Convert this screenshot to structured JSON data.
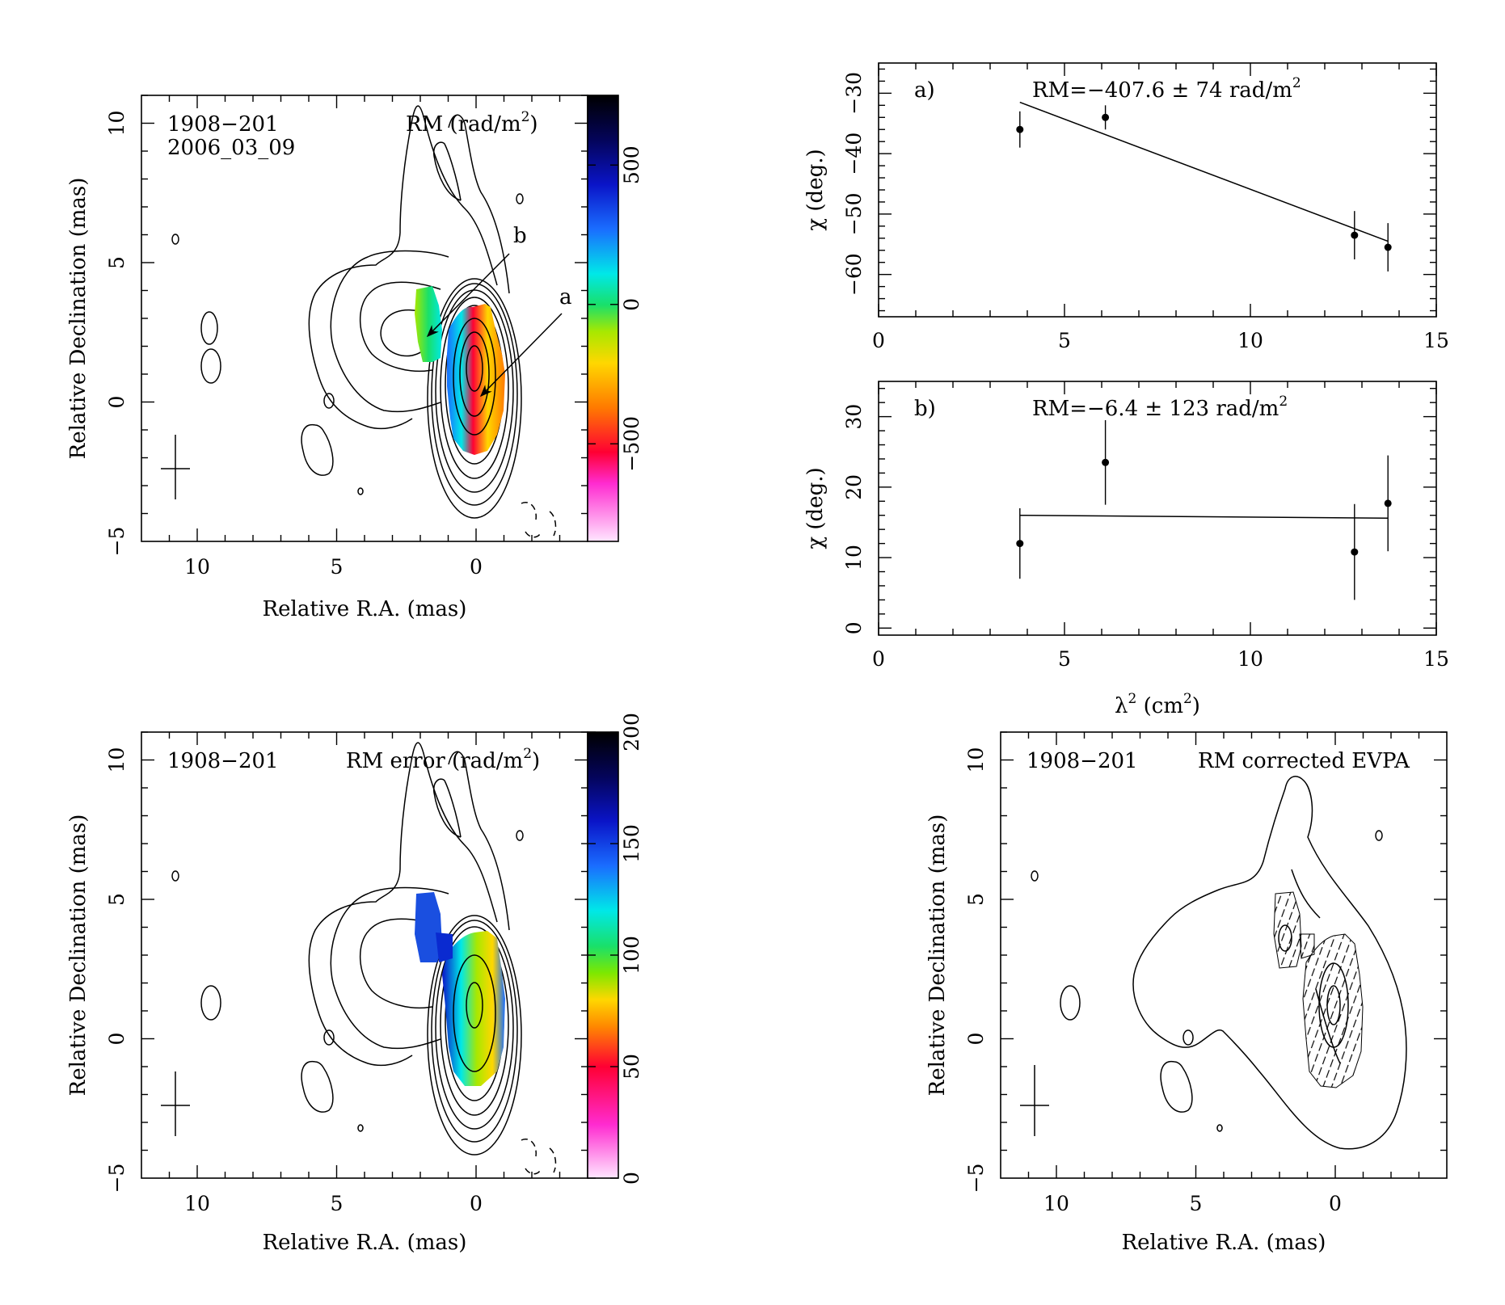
{
  "colors": {
    "ink": "#000000",
    "background": "#ffffff"
  },
  "maps": {
    "xlabel": "Relative R.A. (mas)",
    "ylabel": "Relative Declination (mas)",
    "xticks": [
      "10",
      "5",
      "0"
    ],
    "yticks": [
      "10",
      "5",
      "0",
      "−5"
    ],
    "xlim": [
      12,
      -4
    ],
    "ylim": [
      -5,
      11
    ],
    "source": "1908−201"
  },
  "panels": {
    "rm": {
      "date": "2006_03_09",
      "quantity": "RM (rad/m",
      "quantity_tail": ")",
      "colorbar_ticks": [
        "500",
        "0",
        "−500"
      ],
      "colorbar_values": [
        500,
        0,
        -500
      ],
      "colorbar_range": [
        -850,
        750
      ],
      "pointer_a": "a",
      "pointer_b": "b"
    },
    "rm_error": {
      "quantity": "RM error (rad/m",
      "quantity_tail": ")",
      "colorbar_ticks": [
        "200",
        "150",
        "100",
        "50",
        "0"
      ],
      "colorbar_values": [
        200,
        150,
        100,
        50,
        0
      ],
      "colorbar_range": [
        0,
        200
      ]
    },
    "evpa": {
      "quantity": "RM corrected EVPA"
    }
  },
  "chart_data": [
    {
      "type": "scatter",
      "panel": "a)",
      "annotation_prefix": "RM=−407.6 ± 74 rad/m",
      "ylabel": "χ (deg.)",
      "xlim": [
        0,
        15
      ],
      "ylim": [
        -67,
        -25
      ],
      "yticks": [
        -60,
        -50,
        -40,
        -30
      ],
      "ytick_labels": [
        "−60",
        "−50",
        "−40",
        "−30"
      ],
      "xticks": [
        0,
        5,
        10,
        15
      ],
      "xtick_labels": [
        "0",
        "5",
        "10",
        "15"
      ],
      "points": [
        {
          "x": 3.8,
          "y": -36.0,
          "err": 3.0
        },
        {
          "x": 6.1,
          "y": -34.0,
          "err": 2.0
        },
        {
          "x": 12.8,
          "y": -53.5,
          "err": 4.0
        },
        {
          "x": 13.7,
          "y": -55.5,
          "err": 4.0
        }
      ],
      "fit": [
        {
          "x": 3.8,
          "y": -31.5
        },
        {
          "x": 13.7,
          "y": -54.5
        }
      ]
    },
    {
      "type": "scatter",
      "panel": "b)",
      "annotation_prefix": "RM=−6.4 ± 123 rad/m",
      "ylabel": "χ (deg.)",
      "xlabel_main": "λ",
      "xlabel_tail": " (cm",
      "xlabel_end": ")",
      "xlim": [
        0,
        15
      ],
      "ylim": [
        -1,
        35
      ],
      "yticks": [
        0,
        10,
        20,
        30
      ],
      "ytick_labels": [
        "0",
        "10",
        "20",
        "30"
      ],
      "xticks": [
        0,
        5,
        10,
        15
      ],
      "xtick_labels": [
        "0",
        "5",
        "10",
        "15"
      ],
      "points": [
        {
          "x": 3.8,
          "y": 12.0,
          "err": 5.0
        },
        {
          "x": 6.1,
          "y": 23.5,
          "err": 6.0
        },
        {
          "x": 12.8,
          "y": 10.8,
          "err": 6.8
        },
        {
          "x": 13.7,
          "y": 17.7,
          "err": 6.8
        }
      ],
      "fit": [
        {
          "x": 3.8,
          "y": 16.0
        },
        {
          "x": 13.7,
          "y": 15.6
        }
      ]
    }
  ]
}
